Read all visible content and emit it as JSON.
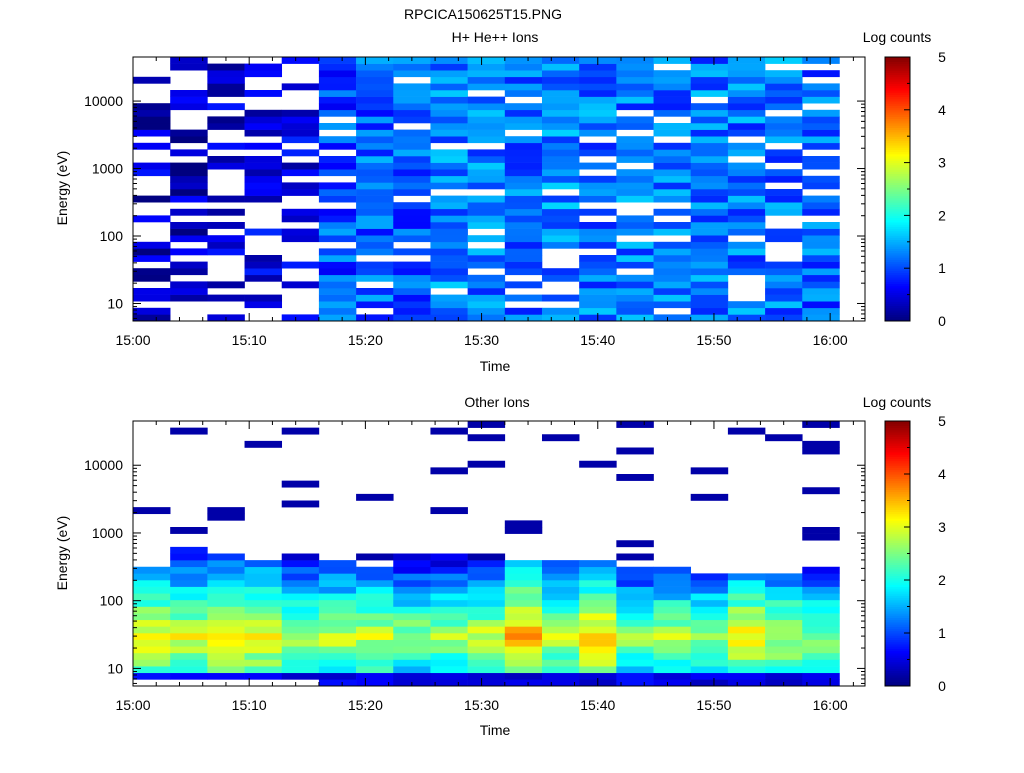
{
  "figure_title": "RPCICA150625T15.PNG",
  "colormap": [
    "#00007f",
    "#0000ff",
    "#007fff",
    "#00ffff",
    "#7fff7f",
    "#ffff00",
    "#ff7f00",
    "#ff0000",
    "#7f0000"
  ],
  "chart_data": [
    {
      "type": "heatmap",
      "title": "H+ He++ Ions",
      "xlabel": "Time",
      "ylabel": "Energy (eV)",
      "x_tick_labels": [
        "15:00",
        "15:10",
        "15:20",
        "15:30",
        "15:40",
        "15:50",
        "16:00"
      ],
      "x_ticks_minutes": [
        0,
        10,
        20,
        30,
        40,
        50,
        60
      ],
      "xlim_minutes": [
        0,
        63
      ],
      "yscale": "log",
      "ylim": [
        5.5,
        45000
      ],
      "y_tick_labels": [
        "10",
        "100",
        "1000",
        "10000"
      ],
      "y_ticks": [
        10,
        100,
        1000,
        10000
      ],
      "colorbar": {
        "label": "Log counts",
        "ticks": [
          "0",
          "1",
          "2",
          "3",
          "4",
          "5"
        ],
        "range": [
          0,
          5
        ]
      },
      "energy_bins_log10": [
        0.8,
        3.4,
        4.6
      ],
      "time_columns_minutes": [
        0,
        3.2,
        6.4,
        9.6,
        12.8,
        16.0,
        19.2,
        22.4,
        25.6,
        28.8,
        32.0,
        35.2,
        38.4,
        41.6,
        44.8,
        48.0,
        51.2,
        54.4,
        57.6
      ],
      "column_width_minutes": 3.2,
      "values": [
        [
          0.3,
          0.2,
          0.3,
          0.4,
          0.4,
          0.4,
          0.5,
          0.6,
          0.7,
          0.7,
          0.7,
          0.8,
          0.8,
          0.8,
          0.8,
          0.8,
          0.8,
          0.8,
          0.9
        ],
        [
          0.7,
          0.6,
          0.5,
          0.6,
          0.7,
          1.0,
          1.1,
          1.1,
          1.2,
          1.2,
          1.2,
          1.3,
          1.2,
          1.2,
          1.2,
          1.2,
          1.2,
          1.2,
          1.1
        ]
      ],
      "sparsity_note_values_are_column_level_intensity": true
    },
    {
      "type": "heatmap",
      "title": "Other Ions",
      "xlabel": "Time",
      "ylabel": "Energy (eV)",
      "x_tick_labels": [
        "15:00",
        "15:10",
        "15:20",
        "15:30",
        "15:40",
        "15:50",
        "16:00"
      ],
      "x_ticks_minutes": [
        0,
        10,
        20,
        30,
        40,
        50,
        60
      ],
      "xlim_minutes": [
        0,
        63
      ],
      "yscale": "log",
      "ylim": [
        5.5,
        45000
      ],
      "y_tick_labels": [
        "10",
        "100",
        "1000",
        "10000"
      ],
      "y_ticks": [
        10,
        100,
        1000,
        10000
      ],
      "colorbar": {
        "label": "Log counts",
        "ticks": [
          "0",
          "1",
          "2",
          "3",
          "4",
          "5"
        ],
        "range": [
          0,
          5
        ]
      },
      "time_columns_minutes": [
        0,
        3.2,
        6.4,
        9.6,
        12.8,
        16.0,
        19.2,
        22.4,
        25.6,
        28.8,
        32.0,
        35.2,
        38.4,
        41.6,
        44.8,
        48.0,
        51.2,
        54.4,
        57.6
      ],
      "column_width_minutes": 3.2,
      "peak_energy_eV": [
        30,
        30,
        30,
        30,
        30,
        30,
        30,
        30,
        30,
        30,
        30,
        30,
        30,
        30,
        30,
        30,
        30,
        30,
        30
      ],
      "peak_log_counts": [
        3.2,
        3.0,
        3.2,
        3.2,
        2.8,
        2.9,
        2.9,
        2.7,
        2.7,
        2.9,
        3.5,
        2.9,
        3.4,
        2.6,
        2.8,
        2.7,
        3.2,
        2.9,
        2.6
      ],
      "upper_cutoff_eV": [
        350,
        600,
        500,
        400,
        500,
        400,
        350,
        450,
        450,
        400,
        400,
        400,
        400,
        300,
        300,
        250,
        250,
        250,
        350
      ]
    }
  ]
}
